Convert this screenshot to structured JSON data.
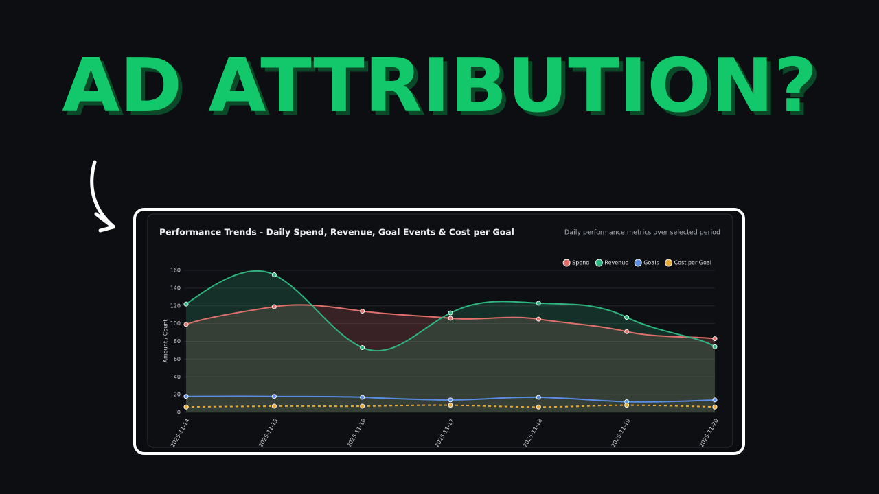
{
  "headline": "AD ATTRIBUTION?",
  "chart_data": {
    "type": "line",
    "title": "Performance Trends - Daily Spend, Revenue, Goal Events & Cost per Goal",
    "subtitle": "Daily performance metrics over selected period",
    "y_label": "Amount / Count",
    "categories": [
      "2025-11-14",
      "2025-11-15",
      "2025-11-16",
      "2025-11-17",
      "2025-11-18",
      "2025-11-19",
      "2025-11-20"
    ],
    "series": [
      {
        "name": "Spend",
        "color": "#e0706c",
        "fill": true,
        "dashed": false,
        "values": [
          99,
          119,
          114,
          106,
          105,
          91,
          83
        ]
      },
      {
        "name": "Revenue",
        "color": "#2fb37f",
        "fill": true,
        "dashed": false,
        "values": [
          122,
          155,
          73,
          112,
          123,
          107,
          74
        ]
      },
      {
        "name": "Goals",
        "color": "#5b8ee6",
        "fill": false,
        "dashed": false,
        "values": [
          18,
          18,
          17,
          14,
          17,
          12,
          14
        ]
      },
      {
        "name": "Cost per Goal",
        "color": "#e6a93a",
        "fill": false,
        "dashed": true,
        "values": [
          6,
          7,
          7,
          8,
          6,
          8,
          6
        ]
      }
    ],
    "ylim": [
      0,
      160
    ],
    "yticks": [
      0,
      20,
      40,
      60,
      80,
      100,
      120,
      140,
      160
    ],
    "grid": true,
    "legend": "top-right"
  }
}
